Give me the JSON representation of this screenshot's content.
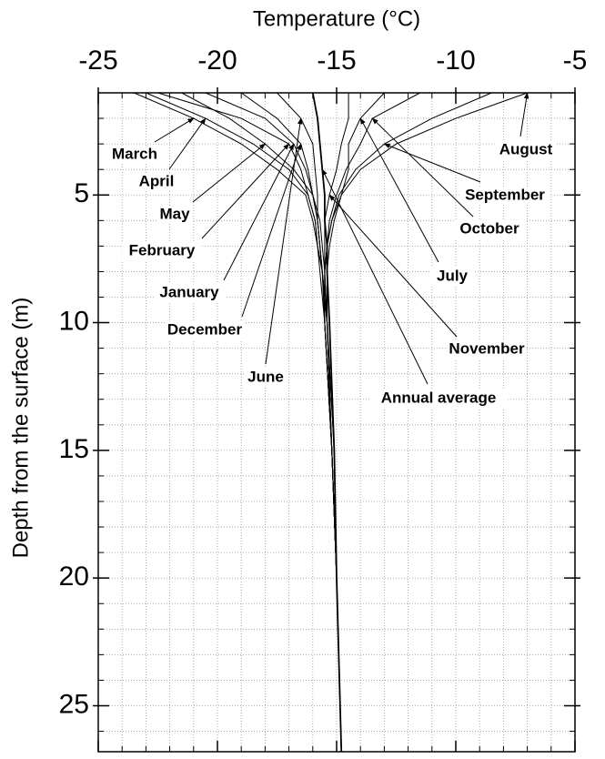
{
  "chart_data": {
    "type": "line",
    "title": "Temperature (°C)",
    "y_label": "Depth from the surface (m)",
    "xlim": [
      -25,
      -5
    ],
    "xticks": [
      -25,
      -20,
      -15,
      -10,
      -5
    ],
    "xminorticks": [
      -24,
      -23,
      -22,
      -21,
      -19,
      -18,
      -17,
      -16,
      -14,
      -13,
      -12,
      -11,
      -9,
      -8,
      -7,
      -6
    ],
    "ylim": [
      1,
      26.8
    ],
    "yticks": [
      5,
      10,
      15,
      20,
      25
    ],
    "yminorticks": [
      1,
      2,
      3,
      4,
      6,
      7,
      8,
      9,
      11,
      12,
      13,
      14,
      16,
      17,
      18,
      19,
      21,
      22,
      23,
      24,
      26
    ],
    "y_inverted": true,
    "grid": true,
    "color": "#000000",
    "y": [
      1,
      2,
      3,
      4,
      5,
      6,
      7,
      8,
      10,
      15,
      20,
      26.8
    ],
    "series": [
      {
        "name": "March",
        "values": [
          -23.5,
          -21,
          -19,
          -17.5,
          -16.3,
          -16,
          -15.8,
          -15.7,
          -15.5,
          -15.2,
          -15,
          -14.8
        ]
      },
      {
        "name": "April",
        "values": [
          -23,
          -20.5,
          -18.5,
          -17,
          -16.2,
          -15.9,
          -15.8,
          -15.6,
          -15.5,
          -15.2,
          -15,
          -14.8
        ]
      },
      {
        "name": "May",
        "values": [
          -21.5,
          -19.5,
          -18,
          -16.8,
          -16,
          -15.8,
          -15.7,
          -15.6,
          -15.4,
          -15.2,
          -15,
          -14.8
        ]
      },
      {
        "name": "February",
        "values": [
          -22.5,
          -19,
          -17,
          -16.5,
          -16.2,
          -15.9,
          -15.8,
          -15.6,
          -15.4,
          -15.2,
          -15,
          -14.8
        ]
      },
      {
        "name": "January",
        "values": [
          -20.5,
          -18,
          -16.8,
          -16.3,
          -16,
          -15.8,
          -15.7,
          -15.6,
          -15.4,
          -15.1,
          -15,
          -14.8
        ]
      },
      {
        "name": "December",
        "values": [
          -19,
          -17.5,
          -16.5,
          -16.2,
          -16,
          -15.7,
          -15.6,
          -15.5,
          -15.4,
          -15.1,
          -15,
          -14.8
        ]
      },
      {
        "name": "June",
        "values": [
          -17.5,
          -16.5,
          -16,
          -15.9,
          -15.8,
          -15.8,
          -15.7,
          -15.6,
          -15.5,
          -15.2,
          -15,
          -14.8
        ]
      },
      {
        "name": "July",
        "values": [
          -13,
          -14,
          -14.5,
          -14.5,
          -14.8,
          -15.1,
          -15.3,
          -15.4,
          -15.4,
          -15.2,
          -15,
          -14.8
        ]
      },
      {
        "name": "August",
        "values": [
          -7,
          -10,
          -12.5,
          -14,
          -14.8,
          -15.2,
          -15.4,
          -15.5,
          -15.5,
          -15.2,
          -15,
          -14.8
        ]
      },
      {
        "name": "September",
        "values": [
          -8.5,
          -11,
          -13,
          -14.2,
          -14.9,
          -15.2,
          -15.4,
          -15.5,
          -15.5,
          -15.2,
          -15,
          -14.8
        ]
      },
      {
        "name": "October",
        "values": [
          -11.5,
          -13.5,
          -14,
          -14.6,
          -15,
          -15.3,
          -15.4,
          -15.5,
          -15.5,
          -15.2,
          -15,
          -14.8
        ]
      },
      {
        "name": "November",
        "values": [
          -14.5,
          -14.5,
          -14.8,
          -15,
          -15.3,
          -15.5,
          -15.5,
          -15.5,
          -15.4,
          -15.2,
          -15,
          -14.8
        ]
      },
      {
        "name": "Annual average",
        "values": [
          -16,
          -15.8,
          -15.7,
          -15.6,
          -15.5,
          -15.5,
          -15.4,
          -15.4,
          -15.3,
          -15.1,
          -15,
          -14.8
        ]
      }
    ]
  }
}
